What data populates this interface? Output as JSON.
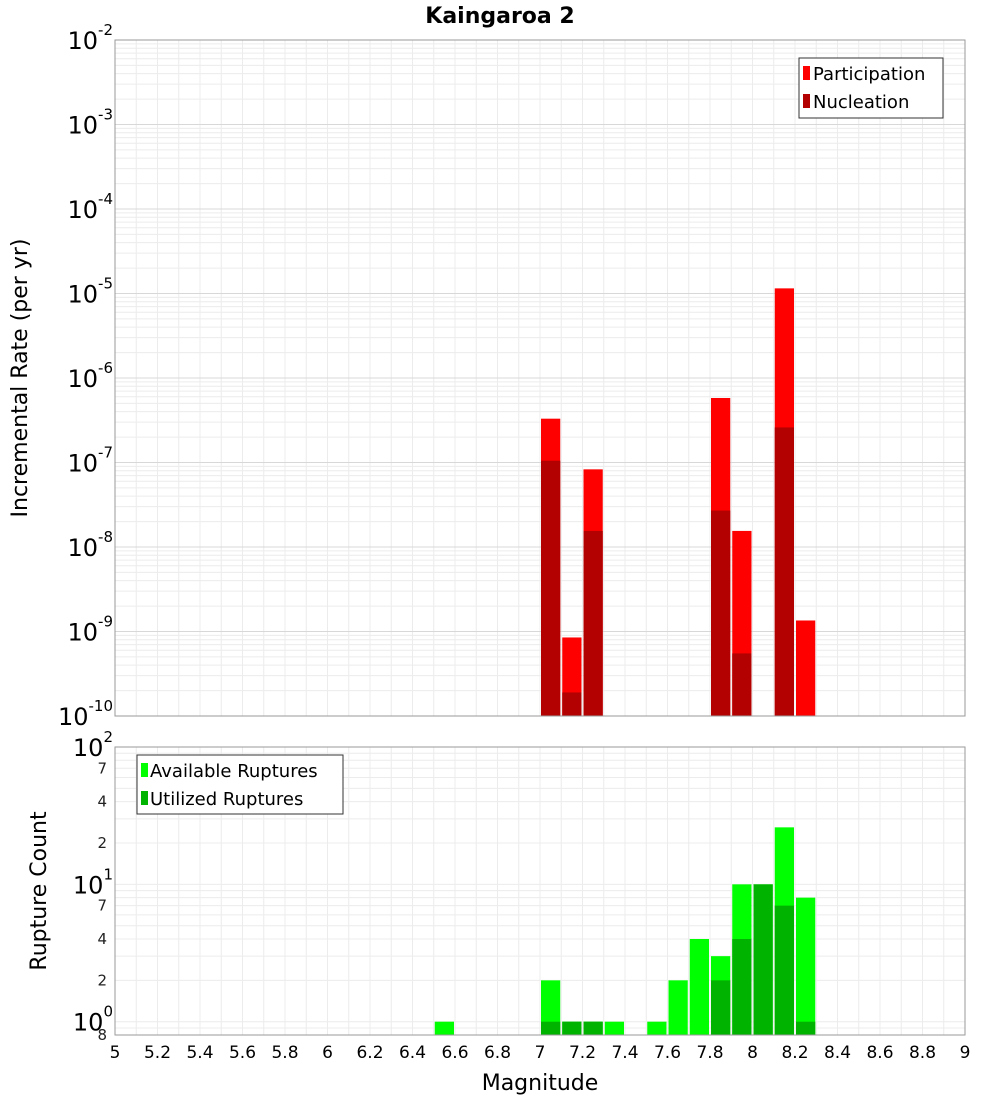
{
  "chart_data": [
    {
      "type": "bar",
      "title": "Kaingaroa 2",
      "xlabel": "",
      "ylabel": "Incremental Rate (per yr)",
      "xlim": [
        5,
        9
      ],
      "ylim": [
        1e-10,
        0.01
      ],
      "yscale": "log",
      "grid": true,
      "legend_position": "top-right",
      "y_ticks": [
        {
          "base": "10",
          "exp": "-2",
          "value": 0.01
        },
        {
          "base": "10",
          "exp": "-3",
          "value": 0.001
        },
        {
          "base": "10",
          "exp": "-4",
          "value": 0.0001
        },
        {
          "base": "10",
          "exp": "-5",
          "value": 1e-05
        },
        {
          "base": "10",
          "exp": "-6",
          "value": 1e-06
        },
        {
          "base": "10",
          "exp": "-7",
          "value": 1e-07
        },
        {
          "base": "10",
          "exp": "-8",
          "value": 1e-08
        },
        {
          "base": "10",
          "exp": "-9",
          "value": 1e-09
        },
        {
          "base": "10",
          "exp": "-10",
          "value": 1e-10
        }
      ],
      "x": [
        7.05,
        7.15,
        7.25,
        7.85,
        7.95,
        8.15,
        8.25
      ],
      "series": [
        {
          "name": "Participation",
          "color": "#ff0000",
          "values": [
            3.3e-07,
            8.5e-10,
            8.3e-08,
            5.8e-07,
            1.55e-08,
            1.15e-05,
            1.35e-09
          ]
        },
        {
          "name": "Nucleation",
          "color": "#b30000",
          "values": [
            1.05e-07,
            1.9e-10,
            1.55e-08,
            2.7e-08,
            5.5e-10,
            2.6e-07,
            null
          ]
        }
      ]
    },
    {
      "type": "bar",
      "xlabel": "Magnitude",
      "ylabel": "Rupture Count",
      "xlim": [
        5,
        9
      ],
      "ylim": [
        0.8,
        100
      ],
      "yscale": "log",
      "grid": true,
      "legend_position": "top-left",
      "x_ticks": [
        "5",
        "5.2",
        "5.4",
        "5.6",
        "5.8",
        "6",
        "6.2",
        "6.4",
        "6.6",
        "6.8",
        "7",
        "7.2",
        "7.4",
        "7.6",
        "7.8",
        "8",
        "8.2",
        "8.4",
        "8.6",
        "8.8",
        "9"
      ],
      "y_major_ticks": [
        {
          "base": "10",
          "exp": "2",
          "value": 100
        },
        {
          "base": "10",
          "exp": "1",
          "value": 10
        },
        {
          "base": "10",
          "exp": "0",
          "value": 1
        }
      ],
      "y_minor_ticks": [
        {
          "label": "7",
          "value": 70
        },
        {
          "label": "4",
          "value": 40
        },
        {
          "label": "2",
          "value": 20
        },
        {
          "label": "7",
          "value": 7
        },
        {
          "label": "4",
          "value": 4
        },
        {
          "label": "2",
          "value": 2
        },
        {
          "label": "8",
          "value": 0.8
        }
      ],
      "x": [
        6.55,
        7.05,
        7.15,
        7.25,
        7.35,
        7.55,
        7.65,
        7.75,
        7.85,
        7.95,
        8.05,
        8.15,
        8.25
      ],
      "series": [
        {
          "name": "Available Ruptures",
          "color": "#00ff00",
          "values": [
            1,
            2,
            1,
            1,
            1,
            1,
            2,
            4,
            3,
            10,
            10,
            26,
            8
          ]
        },
        {
          "name": "Utilized Ruptures",
          "color": "#00b300",
          "values": [
            null,
            1,
            1,
            1,
            null,
            null,
            null,
            null,
            2,
            4,
            10,
            7,
            1
          ]
        }
      ]
    }
  ]
}
